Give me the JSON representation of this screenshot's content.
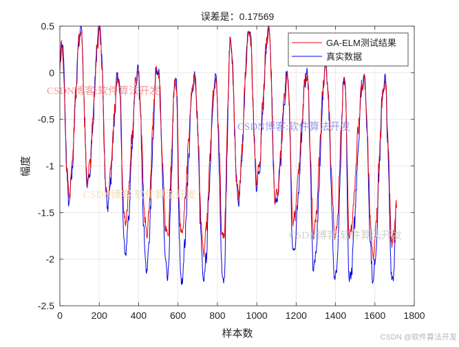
{
  "chart_data": {
    "type": "line",
    "title": "误差是：0.17569",
    "xlabel": "样本数",
    "ylabel": "幅度",
    "xlim": [
      0,
      1800
    ],
    "ylim": [
      -2.5,
      0.5
    ],
    "xticks": [
      0,
      200,
      400,
      600,
      800,
      1000,
      1200,
      1400,
      1600,
      1800
    ],
    "xtick_labels": [
      "0",
      "200",
      "400",
      "600",
      "800",
      "1000",
      "1200",
      "1400",
      "1600",
      "1800"
    ],
    "yticks": [
      -2.5,
      -2,
      -1.5,
      -1,
      -0.5,
      0,
      0.5
    ],
    "ytick_labels": [
      "-2.5",
      "-2",
      "-1.5",
      "-1",
      "-0.5",
      "0",
      "0.5"
    ],
    "grid": true,
    "legend_position": "top-right",
    "series": [
      {
        "name": "GA-ELM测试结果",
        "color": "#e8000b",
        "keypoints": [
          [
            0,
            0.05
          ],
          [
            10,
            0.3
          ],
          [
            45,
            -1.3
          ],
          [
            107,
            0.45
          ],
          [
            140,
            -1.15
          ],
          [
            203,
            0.45
          ],
          [
            240,
            -1.35
          ],
          [
            299,
            -0.05
          ],
          [
            330,
            -1.6
          ],
          [
            396,
            -0.02
          ],
          [
            440,
            -1.7
          ],
          [
            495,
            0.05
          ],
          [
            545,
            -1.75
          ],
          [
            588,
            -0.07
          ],
          [
            615,
            -1.75
          ],
          [
            684,
            -0.07
          ],
          [
            730,
            -1.9
          ],
          [
            791,
            -0.1
          ],
          [
            830,
            -1.8
          ],
          [
            867,
            0.32
          ],
          [
            905,
            -1.3
          ],
          [
            963,
            0.45
          ],
          [
            1000,
            -1.15
          ],
          [
            1062,
            0.45
          ],
          [
            1095,
            -1.35
          ],
          [
            1158,
            -0.05
          ],
          [
            1185,
            -1.6
          ],
          [
            1255,
            -0.02
          ],
          [
            1290,
            -1.7
          ],
          [
            1351,
            0.05
          ],
          [
            1400,
            -1.75
          ],
          [
            1447,
            -0.07
          ],
          [
            1470,
            -1.75
          ],
          [
            1544,
            -0.07
          ],
          [
            1590,
            -1.95
          ],
          [
            1650,
            -0.1
          ],
          [
            1690,
            -1.85
          ],
          [
            1710,
            -1.45
          ]
        ]
      },
      {
        "name": "真实数据",
        "color": "#0000e0",
        "keypoints": [
          [
            0,
            0.0
          ],
          [
            10,
            0.35
          ],
          [
            45,
            -1.37
          ],
          [
            107,
            0.48
          ],
          [
            140,
            -1.2
          ],
          [
            203,
            0.47
          ],
          [
            240,
            -1.42
          ],
          [
            299,
            -0.03
          ],
          [
            330,
            -1.93
          ],
          [
            396,
            0.0
          ],
          [
            440,
            -2.1
          ],
          [
            495,
            0.07
          ],
          [
            545,
            -2.2
          ],
          [
            588,
            -0.05
          ],
          [
            615,
            -2.23
          ],
          [
            684,
            -0.05
          ],
          [
            730,
            -2.2
          ],
          [
            791,
            -0.07
          ],
          [
            830,
            -2.25
          ],
          [
            867,
            0.35
          ],
          [
            905,
            -1.38
          ],
          [
            963,
            0.48
          ],
          [
            1000,
            -1.2
          ],
          [
            1062,
            0.47
          ],
          [
            1095,
            -1.42
          ],
          [
            1158,
            -0.03
          ],
          [
            1185,
            -1.93
          ],
          [
            1255,
            0.0
          ],
          [
            1290,
            -2.1
          ],
          [
            1351,
            0.07
          ],
          [
            1400,
            -2.2
          ],
          [
            1447,
            -0.05
          ],
          [
            1470,
            -2.23
          ],
          [
            1544,
            -0.05
          ],
          [
            1590,
            -2.2
          ],
          [
            1650,
            -0.07
          ],
          [
            1690,
            -2.25
          ],
          [
            1710,
            -1.45
          ]
        ]
      }
    ]
  },
  "watermarks": [
    {
      "text": "CSDN博客:软件算法开发",
      "color": "#f08a8a"
    },
    {
      "text": "CSDN博客:软件算法开发",
      "color": "#8a8ae8"
    },
    {
      "text": "CSDN博客:软件算法开发",
      "color": "#f5d9a8"
    },
    {
      "text": "CSDN博客:软件算法开发",
      "color": "#c8c8c8"
    }
  ],
  "footer_watermark": "CSDN @软件算法开发"
}
